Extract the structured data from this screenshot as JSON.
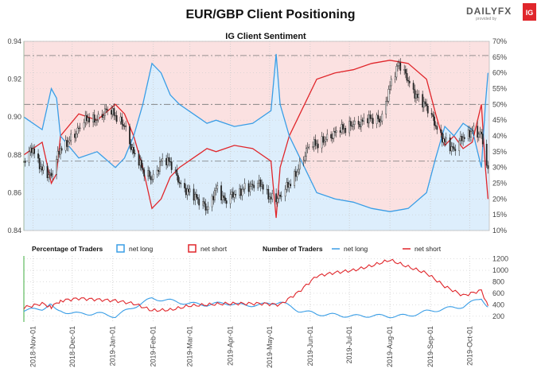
{
  "title": "EUR/GBP Client Positioning",
  "subtitle": "IG Client Sentiment",
  "logo": {
    "text": "DAILYFX",
    "subtext": "provided by",
    "badge": "IG",
    "badge_color": "#e0262b"
  },
  "colors": {
    "net_long": "#3a9ee6",
    "net_short": "#e0262b",
    "long_fill": "#ddeefc",
    "short_fill": "#fbe1e1",
    "candle": "#222222",
    "grid": "#cccccc"
  },
  "chart_data": [
    {
      "type": "candlestick",
      "title": "IG Client Sentiment",
      "left_axis": {
        "ticks": [
          "0.94",
          "0.92",
          "0.90",
          "0.88",
          "0.86",
          "0.84"
        ],
        "range": [
          0.84,
          0.94
        ]
      },
      "right_axis": {
        "ticks": [
          "70%",
          "65%",
          "60%",
          "55%",
          "50%",
          "45%",
          "40%",
          "35%",
          "30%",
          "25%",
          "20%",
          "15%",
          "10%"
        ],
        "range": [
          10,
          70
        ]
      },
      "reference_lines": [
        {
          "axis": "right",
          "value": 65.5
        },
        {
          "axis": "right",
          "value": 50
        },
        {
          "axis": "right",
          "value": 32
        }
      ],
      "price_series": {
        "name": "EUR/GBP",
        "points": [
          [
            "2018-10-25",
            0.876
          ],
          [
            "2018-11-01",
            0.884
          ],
          [
            "2018-11-08",
            0.872
          ],
          [
            "2018-11-15",
            0.868
          ],
          [
            "2018-11-22",
            0.884
          ],
          [
            "2018-11-29",
            0.888
          ],
          [
            "2018-12-06",
            0.893
          ],
          [
            "2018-12-13",
            0.9
          ],
          [
            "2018-12-20",
            0.899
          ],
          [
            "2018-12-27",
            0.903
          ],
          [
            "2019-01-03",
            0.901
          ],
          [
            "2019-01-10",
            0.896
          ],
          [
            "2019-01-17",
            0.88
          ],
          [
            "2019-01-24",
            0.872
          ],
          [
            "2019-01-31",
            0.868
          ],
          [
            "2019-02-07",
            0.876
          ],
          [
            "2019-02-14",
            0.876
          ],
          [
            "2019-02-21",
            0.866
          ],
          [
            "2019-02-28",
            0.86
          ],
          [
            "2019-03-07",
            0.856
          ],
          [
            "2019-03-14",
            0.852
          ],
          [
            "2019-03-21",
            0.862
          ],
          [
            "2019-03-28",
            0.855
          ],
          [
            "2019-04-04",
            0.86
          ],
          [
            "2019-04-11",
            0.862
          ],
          [
            "2019-04-18",
            0.863
          ],
          [
            "2019-04-25",
            0.865
          ],
          [
            "2019-05-02",
            0.857
          ],
          [
            "2019-05-09",
            0.857
          ],
          [
            "2019-05-16",
            0.865
          ],
          [
            "2019-05-23",
            0.873
          ],
          [
            "2019-05-30",
            0.883
          ],
          [
            "2019-06-06",
            0.886
          ],
          [
            "2019-06-13",
            0.889
          ],
          [
            "2019-06-20",
            0.891
          ],
          [
            "2019-06-27",
            0.894
          ],
          [
            "2019-07-04",
            0.897
          ],
          [
            "2019-07-11",
            0.897
          ],
          [
            "2019-07-18",
            0.899
          ],
          [
            "2019-07-25",
            0.899
          ],
          [
            "2019-08-01",
            0.916
          ],
          [
            "2019-08-08",
            0.928
          ],
          [
            "2019-08-15",
            0.92
          ],
          [
            "2019-08-22",
            0.91
          ],
          [
            "2019-08-29",
            0.905
          ],
          [
            "2019-09-05",
            0.896
          ],
          [
            "2019-09-12",
            0.887
          ],
          [
            "2019-09-19",
            0.882
          ],
          [
            "2019-09-26",
            0.89
          ],
          [
            "2019-10-03",
            0.893
          ],
          [
            "2019-10-10",
            0.89
          ],
          [
            "2019-10-15",
            0.87
          ]
        ]
      },
      "net_long_pct": {
        "name": "net long",
        "points": [
          [
            "2018-10-25",
            46
          ],
          [
            "2018-11-08",
            42
          ],
          [
            "2018-11-15",
            55
          ],
          [
            "2018-11-19",
            52
          ],
          [
            "2018-11-22",
            40
          ],
          [
            "2018-12-06",
            33
          ],
          [
            "2018-12-20",
            35
          ],
          [
            "2019-01-03",
            30
          ],
          [
            "2019-01-10",
            33
          ],
          [
            "2019-01-17",
            40
          ],
          [
            "2019-01-24",
            50
          ],
          [
            "2019-01-31",
            63
          ],
          [
            "2019-02-07",
            60
          ],
          [
            "2019-02-14",
            53
          ],
          [
            "2019-02-21",
            50
          ],
          [
            "2019-03-07",
            46
          ],
          [
            "2019-03-14",
            44
          ],
          [
            "2019-03-21",
            45
          ],
          [
            "2019-04-04",
            43
          ],
          [
            "2019-04-18",
            44
          ],
          [
            "2019-05-02",
            48
          ],
          [
            "2019-05-06",
            66
          ],
          [
            "2019-05-09",
            50
          ],
          [
            "2019-05-16",
            40
          ],
          [
            "2019-05-23",
            34
          ],
          [
            "2019-06-06",
            22
          ],
          [
            "2019-06-20",
            20
          ],
          [
            "2019-07-04",
            19
          ],
          [
            "2019-07-18",
            17
          ],
          [
            "2019-08-01",
            16
          ],
          [
            "2019-08-15",
            17
          ],
          [
            "2019-08-29",
            22
          ],
          [
            "2019-09-05",
            33
          ],
          [
            "2019-09-12",
            43
          ],
          [
            "2019-09-19",
            40
          ],
          [
            "2019-09-26",
            44
          ],
          [
            "2019-10-03",
            42
          ],
          [
            "2019-10-10",
            30
          ],
          [
            "2019-10-13",
            50
          ],
          [
            "2019-10-15",
            60
          ]
        ]
      },
      "net_short_pct": {
        "name": "net short",
        "note_relation": "100 - net long"
      }
    },
    {
      "type": "line",
      "x_ticks": [
        "2018-Nov-01",
        "2018-Dec-01",
        "2019-Jan-01",
        "2019-Feb-01",
        "2019-Mar-01",
        "2019-Apr-01",
        "2019-May-01",
        "2019-Jun-01",
        "2019-Jul-01",
        "2019-Aug-01",
        "2019-Sep-01",
        "2019-Oct-01"
      ],
      "y_ticks": [
        "1200",
        "1000",
        "800",
        "600",
        "400",
        "200"
      ],
      "ylim": [
        100,
        1250
      ],
      "legend": {
        "percentage_title": "Percentage of Traders",
        "number_title": "Number of Traders",
        "net_long": "net long",
        "net_short": "net short"
      },
      "series": [
        {
          "name": "net long",
          "x": [
            "2018-10-25",
            "2018-11-08",
            "2018-11-15",
            "2018-11-22",
            "2018-12-06",
            "2018-12-20",
            "2019-01-03",
            "2019-01-17",
            "2019-01-31",
            "2019-02-14",
            "2019-02-28",
            "2019-03-14",
            "2019-03-28",
            "2019-04-11",
            "2019-04-25",
            "2019-05-09",
            "2019-05-23",
            "2019-06-06",
            "2019-06-20",
            "2019-07-04",
            "2019-07-18",
            "2019-08-01",
            "2019-08-15",
            "2019-08-29",
            "2019-09-12",
            "2019-09-26",
            "2019-10-10",
            "2019-10-15"
          ],
          "values": [
            300,
            330,
            420,
            290,
            240,
            250,
            200,
            360,
            510,
            470,
            420,
            400,
            430,
            390,
            400,
            450,
            300,
            240,
            220,
            200,
            210,
            200,
            210,
            280,
            330,
            370,
            520,
            360
          ]
        },
        {
          "name": "net short",
          "x": [
            "2018-10-25",
            "2018-11-08",
            "2018-11-15",
            "2018-11-22",
            "2018-12-06",
            "2018-12-20",
            "2019-01-03",
            "2019-01-17",
            "2019-01-31",
            "2019-02-14",
            "2019-02-28",
            "2019-03-14",
            "2019-03-28",
            "2019-04-11",
            "2019-04-25",
            "2019-05-09",
            "2019-05-23",
            "2019-06-06",
            "2019-06-20",
            "2019-07-04",
            "2019-07-18",
            "2019-08-01",
            "2019-08-15",
            "2019-08-29",
            "2019-09-12",
            "2019-09-26",
            "2019-10-10",
            "2019-10-15"
          ],
          "values": [
            350,
            420,
            360,
            470,
            510,
            490,
            470,
            420,
            300,
            310,
            380,
            400,
            420,
            420,
            420,
            400,
            620,
            900,
            960,
            1000,
            1080,
            1180,
            1060,
            950,
            720,
            560,
            650,
            380
          ]
        }
      ]
    }
  ]
}
